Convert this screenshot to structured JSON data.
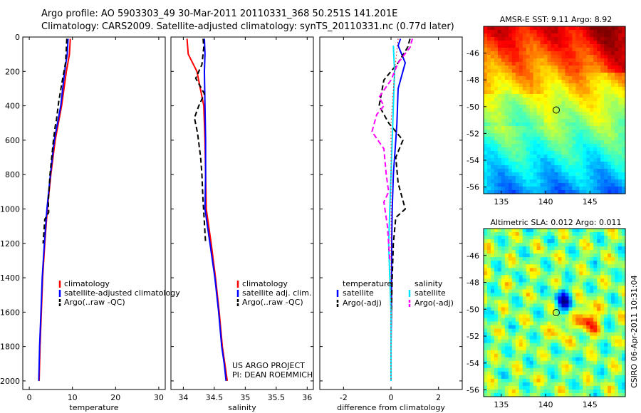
{
  "header": {
    "title_line1": "Argo profile: AO 5903303_49 30-Mar-2011 20110331_368 50.251S 141.201E",
    "title_line2": "Climatology: CARS2009. Satellite-adjusted climatology: synTS_20110331.nc (0.77d later)"
  },
  "stamp": "CSIRO 06-Apr-2011 10:31:04",
  "colors": {
    "climatology": "#ff0000",
    "satellite": "#0000ff",
    "argo": "#000000",
    "salinity_satellite": "#00e5ff",
    "salinity_argo": "#ff00ff",
    "dotted": "#ff0000"
  },
  "chart_data": [
    {
      "type": "line",
      "name": "temperature",
      "xlabel": "temperature",
      "ylabel": "",
      "xlim": [
        -1.5,
        31.5
      ],
      "ylim": [
        2050,
        0
      ],
      "xticks": [
        0,
        10,
        20,
        30
      ],
      "xtick_labels": [
        "0",
        "10",
        "20",
        "30"
      ],
      "yticks": [
        0,
        200,
        400,
        600,
        800,
        1000,
        1200,
        1400,
        1600,
        1800,
        2000
      ],
      "ytick_labels": [
        "0",
        "200",
        "400",
        "600",
        "800",
        "1000",
        "1200",
        "1400",
        "1600",
        "1800",
        "2000"
      ],
      "legend": [
        "climatology",
        "satellite-adjusted climatology",
        "Argo(..raw -QC)"
      ],
      "legend_position": "bottom-right",
      "series": [
        {
          "name": "climatology",
          "color": "#ff0000",
          "dash": "solid",
          "x": [
            9.5,
            9.3,
            8.6,
            7.5,
            6.0,
            5.0,
            4.2,
            3.6,
            3.1,
            2.8,
            2.5,
            2.4,
            2.3
          ],
          "y": [
            10,
            100,
            200,
            400,
            600,
            800,
            1000,
            1200,
            1400,
            1600,
            1800,
            1900,
            2000
          ]
        },
        {
          "name": "satellite-adjusted climatology",
          "color": "#0000ff",
          "dash": "solid",
          "x": [
            9.0,
            8.8,
            8.2,
            7.3,
            5.8,
            4.9,
            4.1,
            3.5,
            3.0,
            2.7,
            2.4,
            2.3,
            2.2
          ],
          "y": [
            10,
            100,
            200,
            400,
            600,
            800,
            1000,
            1200,
            1400,
            1600,
            1800,
            1900,
            2000
          ]
        },
        {
          "name": "Argo(..raw -QC)",
          "color": "#000000",
          "dash": "dash",
          "x": [
            8.7,
            8.6,
            8.4,
            7.6,
            6.8,
            6.3,
            6.0,
            5.6,
            4.8,
            4.4,
            4.5,
            3.6,
            3.2
          ],
          "y": [
            10,
            60,
            150,
            260,
            380,
            480,
            520,
            600,
            800,
            960,
            1020,
            1060,
            1200
          ]
        }
      ]
    },
    {
      "type": "line",
      "name": "salinity",
      "xlabel": "salinity",
      "ylabel": "",
      "xlim": [
        33.8,
        36.1
      ],
      "ylim": [
        2050,
        0
      ],
      "xticks": [
        34,
        34.5,
        35,
        35.5,
        36
      ],
      "xtick_labels": [
        "34",
        "34.5",
        "35",
        "35.5",
        "36"
      ],
      "legend": [
        "climatology",
        "satellite adj. clim.",
        "Argo(..raw -QC)"
      ],
      "legend_position": "bottom-right",
      "annotation": [
        "US ARGO PROJECT",
        "PI: DEAN ROEMMICH"
      ],
      "series": [
        {
          "name": "climatology",
          "color": "#ff0000",
          "dash": "solid",
          "x": [
            34.06,
            34.08,
            34.22,
            34.33,
            34.35,
            34.36,
            34.37,
            34.45,
            34.52,
            34.58,
            34.63,
            34.67,
            34.71
          ],
          "y": [
            10,
            100,
            200,
            400,
            600,
            800,
            1000,
            1200,
            1400,
            1600,
            1800,
            1900,
            2000
          ]
        },
        {
          "name": "satellite adj. clim.",
          "color": "#0000ff",
          "dash": "solid",
          "x": [
            34.34,
            34.35,
            34.34,
            34.35,
            34.36,
            34.36,
            34.35,
            34.43,
            34.51,
            34.57,
            34.62,
            34.66,
            34.69
          ],
          "y": [
            10,
            100,
            200,
            400,
            600,
            800,
            1000,
            1200,
            1400,
            1600,
            1800,
            1900,
            2000
          ]
        },
        {
          "name": "Argo(..raw -QC)",
          "color": "#000000",
          "dash": "dash",
          "x": [
            34.32,
            34.33,
            34.3,
            34.2,
            34.34,
            34.25,
            34.18,
            34.23,
            34.28,
            34.3,
            34.31,
            34.32,
            34.33,
            34.36
          ],
          "y": [
            10,
            60,
            160,
            240,
            330,
            400,
            470,
            560,
            700,
            800,
            880,
            960,
            1020,
            1200
          ]
        }
      ]
    },
    {
      "type": "line",
      "name": "difference from climatology",
      "xlabel": "difference from climatology",
      "ylabel": "",
      "xlim": [
        -3.0,
        3.0
      ],
      "ylim": [
        2050,
        0
      ],
      "xticks": [
        -2,
        0,
        2
      ],
      "xtick_labels": [
        "-2",
        "0",
        "2"
      ],
      "legend_position": "bottom",
      "legend_groups": [
        {
          "title": "temperature",
          "items": [
            "satellite",
            "Argo(-adj)"
          ]
        },
        {
          "title": "salinity",
          "items": [
            "satellite",
            "Argo(-adj)"
          ]
        }
      ],
      "series": [
        {
          "name": "temperature satellite",
          "color": "#0000ff",
          "dash": "solid",
          "x": [
            0.4,
            0.3,
            0.6,
            0.3,
            0.25,
            0.2,
            0.15,
            0.1,
            0.05,
            0.03,
            0.02,
            0.0,
            0.0
          ],
          "y": [
            10,
            50,
            150,
            300,
            500,
            600,
            700,
            800,
            1000,
            1200,
            1500,
            1800,
            2000
          ]
        },
        {
          "name": "temperature Argo(-adj)",
          "color": "#000000",
          "dash": "dash",
          "x": [
            0.8,
            0.7,
            0.3,
            -0.3,
            -0.5,
            -0.1,
            0.5,
            0.2,
            0.3,
            0.6,
            0.2,
            0.1,
            0.05,
            0.0
          ],
          "y": [
            10,
            60,
            150,
            250,
            400,
            500,
            600,
            700,
            850,
            1000,
            1050,
            1200,
            1400,
            1700
          ]
        },
        {
          "name": "salinity satellite",
          "color": "#00e5ff",
          "dash": "solid",
          "x": [
            0.1,
            0.15,
            0.1,
            0.05,
            0.0,
            -0.05,
            -0.1,
            -0.05,
            0.0,
            0.0
          ],
          "y": [
            50,
            200,
            400,
            600,
            800,
            1000,
            1200,
            1400,
            1600,
            2000
          ]
        },
        {
          "name": "salinity Argo(-adj)",
          "color": "#ff00ff",
          "dash": "dash",
          "x": [
            0.9,
            0.8,
            0.3,
            0.0,
            -0.5,
            -0.3,
            -0.6,
            -0.8,
            -0.3,
            -0.2,
            -0.1,
            -0.3,
            -0.15,
            -0.05
          ],
          "y": [
            10,
            60,
            150,
            250,
            350,
            400,
            450,
            550,
            650,
            800,
            900,
            960,
            1100,
            1300
          ]
        },
        {
          "name": "difference reference",
          "color": "#ff0000",
          "dash": "dot",
          "x": [
            0.3,
            0.15,
            0.0,
            0.0
          ],
          "y": [
            10,
            200,
            500,
            2000
          ]
        }
      ]
    },
    {
      "type": "heatmap",
      "name": "amsr-sst",
      "title": "AMSR-E SST: 9.11 Argo: 8.92",
      "xlim": [
        133,
        149
      ],
      "ylim": [
        -56.5,
        -44
      ],
      "xticks": [
        135,
        140,
        145
      ],
      "xtick_labels": [
        "135",
        "140",
        "145"
      ],
      "yticks": [
        -46,
        -48,
        -50,
        -52,
        -54,
        -56
      ],
      "ytick_labels": [
        "-46",
        "-48",
        "-50",
        "-52",
        "-54",
        "-56"
      ],
      "marker": {
        "lon": 141.201,
        "lat": -50.251
      }
    },
    {
      "type": "heatmap",
      "name": "altimetric-sla",
      "title": "Altimetric SLA: 0.012 Argo: 0.011",
      "xlim": [
        133,
        149
      ],
      "ylim": [
        -56.5,
        -44
      ],
      "xticks": [
        135,
        140,
        145
      ],
      "xtick_labels": [
        "135",
        "140",
        "145"
      ],
      "yticks": [
        -46,
        -48,
        -50,
        -52,
        -54,
        -56
      ],
      "ytick_labels": [
        "-46",
        "-48",
        "-50",
        "-52",
        "-54",
        "-56"
      ],
      "marker": {
        "lon": 141.201,
        "lat": -50.251
      }
    }
  ]
}
